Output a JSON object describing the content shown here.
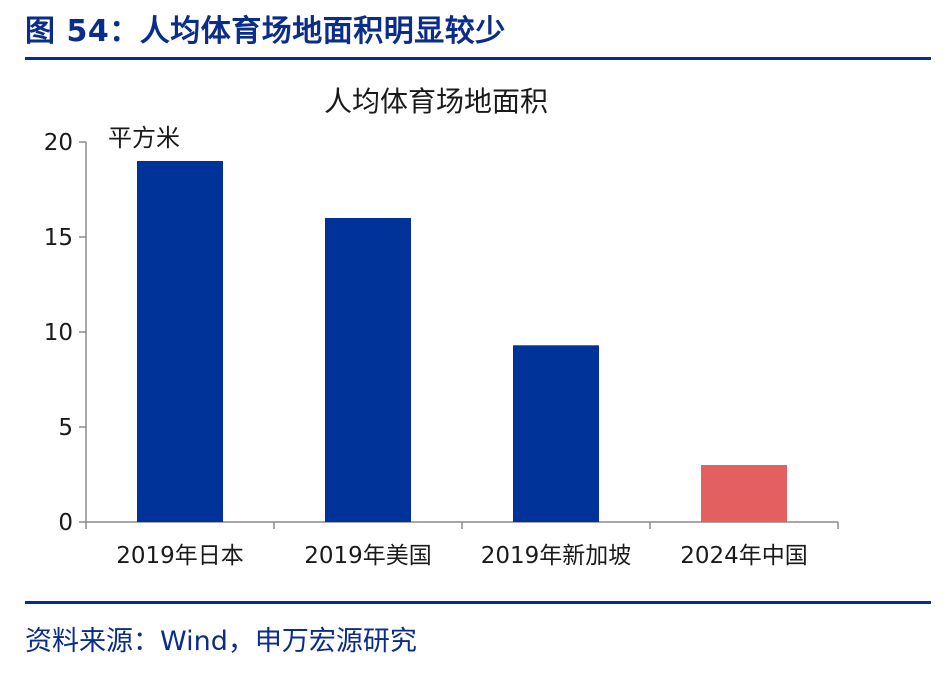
{
  "figure": {
    "title": "图 54：人均体育场地面积明显较少",
    "source": "资料来源：Wind，申万宏源研究"
  },
  "chart_data": {
    "type": "bar",
    "title": "人均体育场地面积",
    "unit": "平方米",
    "categories": [
      "2019年日本",
      "2019年美国",
      "2019年新加坡",
      "2024年中国"
    ],
    "values": [
      19.0,
      16.0,
      9.3,
      3.0
    ],
    "colors": [
      "#00339A",
      "#00339A",
      "#00339A",
      "#E46060"
    ],
    "ylim": [
      0,
      20
    ],
    "yticks": [
      0,
      5,
      10,
      15,
      20
    ],
    "grid": false,
    "legend": "none"
  }
}
